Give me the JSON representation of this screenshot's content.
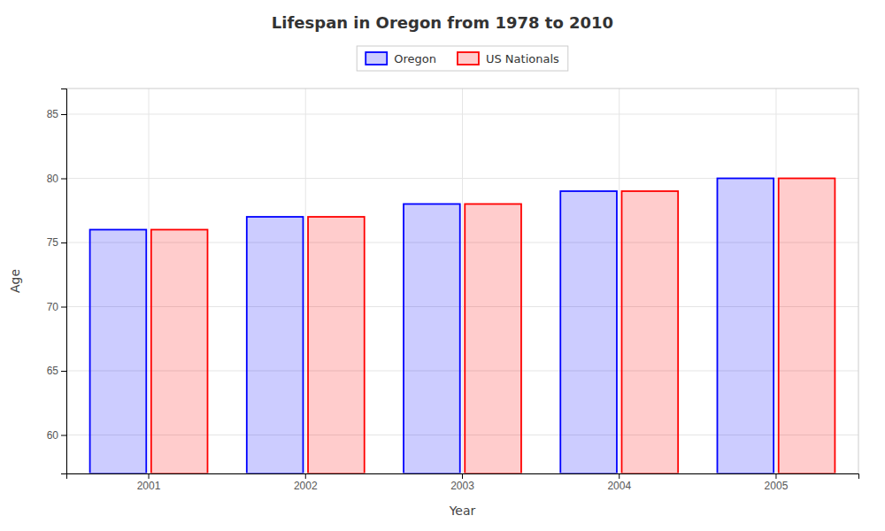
{
  "chart_data": {
    "type": "bar",
    "title": "Lifespan in Oregon from 1978 to 2010",
    "xlabel": "Year",
    "ylabel": "Age",
    "categories": [
      "2001",
      "2002",
      "2003",
      "2004",
      "2005"
    ],
    "series": [
      {
        "name": "Oregon",
        "color": "#0000ff",
        "values": [
          76.0,
          77.0,
          78.0,
          79.0,
          80.0
        ]
      },
      {
        "name": "US Nationals",
        "color": "#ff0000",
        "values": [
          76.0,
          77.0,
          78.0,
          79.0,
          80.0
        ]
      }
    ],
    "ylim": [
      57,
      87
    ],
    "yticks": [
      60,
      65,
      70,
      75,
      80,
      85
    ],
    "grid": true,
    "legend": "top"
  }
}
